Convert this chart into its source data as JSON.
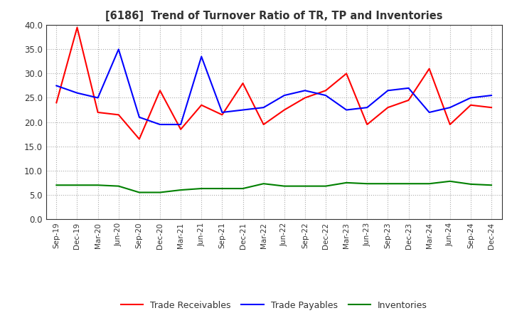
{
  "title": "[6186]  Trend of Turnover Ratio of TR, TP and Inventories",
  "labels": [
    "Sep-19",
    "Dec-19",
    "Mar-20",
    "Jun-20",
    "Sep-20",
    "Dec-20",
    "Mar-21",
    "Jun-21",
    "Sep-21",
    "Dec-21",
    "Mar-22",
    "Jun-22",
    "Sep-22",
    "Dec-22",
    "Mar-23",
    "Jun-23",
    "Sep-23",
    "Dec-23",
    "Mar-24",
    "Jun-24",
    "Sep-24",
    "Dec-24"
  ],
  "trade_receivables": [
    24.0,
    39.5,
    22.0,
    21.5,
    16.5,
    26.5,
    18.5,
    23.5,
    21.5,
    28.0,
    19.5,
    22.5,
    25.0,
    26.5,
    30.0,
    19.5,
    23.0,
    24.5,
    31.0,
    19.5,
    23.5,
    23.0
  ],
  "trade_payables": [
    27.5,
    26.0,
    25.0,
    35.0,
    21.0,
    19.5,
    19.5,
    33.5,
    22.0,
    22.5,
    23.0,
    25.5,
    26.5,
    25.5,
    22.5,
    23.0,
    26.5,
    27.0,
    22.0,
    23.0,
    25.0,
    25.5
  ],
  "inventories": [
    7.0,
    7.0,
    7.0,
    6.8,
    5.5,
    5.5,
    6.0,
    6.3,
    6.3,
    6.3,
    7.3,
    6.8,
    6.8,
    6.8,
    7.5,
    7.3,
    7.3,
    7.3,
    7.3,
    7.8,
    7.2,
    7.0
  ],
  "tr_color": "#ff0000",
  "tp_color": "#0000ff",
  "inv_color": "#008000",
  "ylim": [
    0.0,
    40.0
  ],
  "yticks": [
    0.0,
    5.0,
    10.0,
    15.0,
    20.0,
    25.0,
    30.0,
    35.0,
    40.0
  ],
  "legend_labels": [
    "Trade Receivables",
    "Trade Payables",
    "Inventories"
  ],
  "background_color": "#ffffff",
  "grid_color": "#aaaaaa",
  "title_color": "#333333"
}
